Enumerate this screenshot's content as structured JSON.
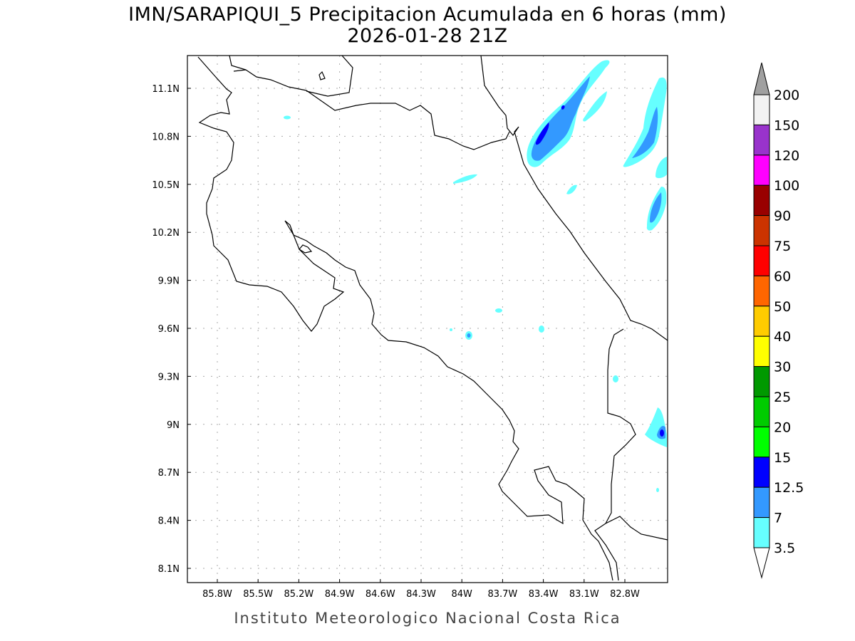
{
  "title": {
    "line1": "IMN/SARAPIQUI_5 Precipitacion Acumulada en 6 horas (mm)",
    "line2": "2026-01-28 21Z"
  },
  "footer": "Instituto Meteorologico Nacional Costa Rica",
  "axes": {
    "lon_labels": [
      "85.8W",
      "85.5W",
      "85.2W",
      "84.9W",
      "84.6W",
      "84.3W",
      "84W",
      "83.7W",
      "83.4W",
      "83.1W",
      "82.8W"
    ],
    "lat_labels": [
      "11.1N",
      "10.8N",
      "10.5N",
      "10.2N",
      "9.9N",
      "9.6N",
      "9.3N",
      "9N",
      "8.7N",
      "8.4N",
      "8.1N"
    ]
  },
  "colorbar": {
    "levels": [
      "3.5",
      "7",
      "12.5",
      "15",
      "20",
      "25",
      "30",
      "40",
      "50",
      "60",
      "75",
      "90",
      "100",
      "120",
      "150",
      "200"
    ],
    "colors": [
      "#66ffff",
      "#3399ff",
      "#0000ff",
      "#00ff00",
      "#00cc00",
      "#009900",
      "#ffff00",
      "#ffcc00",
      "#ff6600",
      "#ff0000",
      "#cc3300",
      "#990000",
      "#ff00ff",
      "#9933cc",
      "#f2f2f2"
    ],
    "over_color": "#a0a0a0",
    "under_color": "#ffffff"
  }
}
